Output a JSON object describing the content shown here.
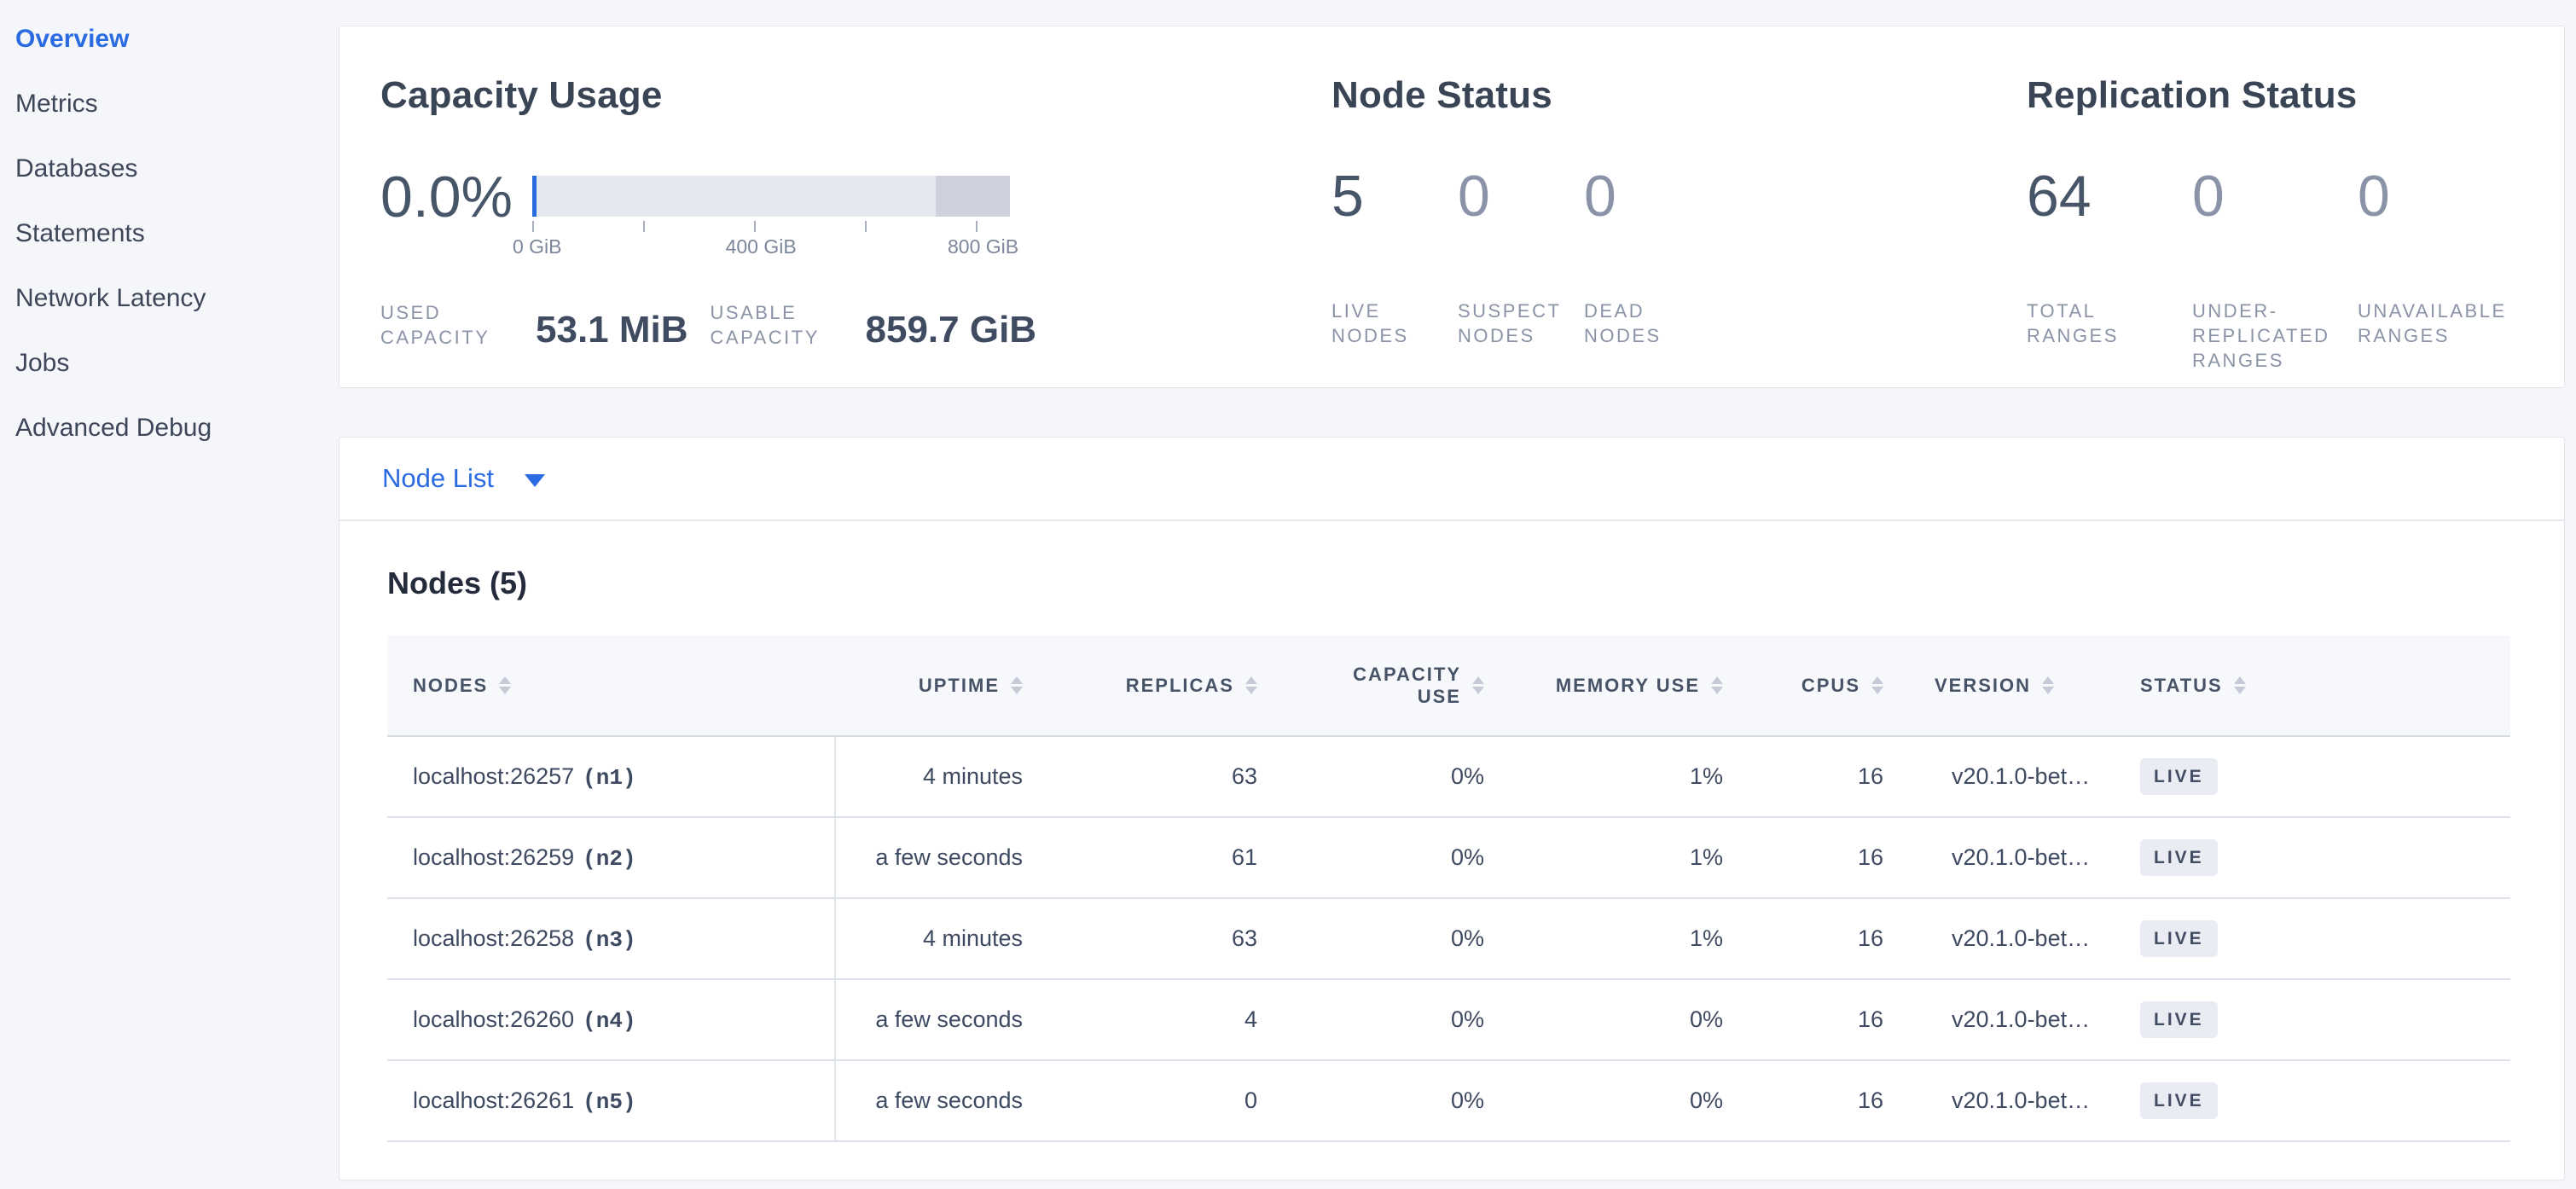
{
  "colors": {
    "accent_blue": "#2b6be2",
    "text_dark": "#394455",
    "text_row": "#3e4a61",
    "text_muted": "#8b93a7",
    "page_background": "#f5f6fa",
    "card_background": "#ffffff",
    "gauge_light": "#e5e8ee",
    "gauge_dark": "#cdd2dd",
    "badge_background": "#e9ecf3",
    "header_background": "#f7f8fb"
  },
  "sidebar": {
    "items": [
      {
        "label": "Overview",
        "active": true
      },
      {
        "label": "Metrics",
        "active": false
      },
      {
        "label": "Databases",
        "active": false
      },
      {
        "label": "Statements",
        "active": false
      },
      {
        "label": "Network Latency",
        "active": false
      },
      {
        "label": "Jobs",
        "active": false
      },
      {
        "label": "Advanced Debug",
        "active": false
      }
    ]
  },
  "summary": {
    "capacity": {
      "title": "Capacity Usage",
      "percent": "0.0%",
      "gauge": {
        "used_fraction_percent": 0.0,
        "light_segment_end_percent": 84.5,
        "dark_segment_end_percent": 100,
        "axis_ticks": [
          {
            "label": "0 GiB",
            "pos": 0
          },
          {
            "label": "",
            "pos": 23.2
          },
          {
            "label": "400 GiB",
            "pos": 46.4
          },
          {
            "label": "",
            "pos": 69.7
          },
          {
            "label": "800 GiB",
            "pos": 92.9
          }
        ]
      },
      "used_label": "USED CAPACITY",
      "used_value": "53.1 MiB",
      "usable_label": "USABLE CAPACITY",
      "usable_value": "859.7 GiB"
    },
    "node_status": {
      "title": "Node Status",
      "stats": [
        {
          "value": "5",
          "label": "LIVE NODES",
          "emphasis": true
        },
        {
          "value": "0",
          "label": "SUSPECT NODES",
          "emphasis": false
        },
        {
          "value": "0",
          "label": "DEAD NODES",
          "emphasis": false
        }
      ]
    },
    "replication": {
      "title": "Replication Status",
      "stats": [
        {
          "value": "64",
          "label": "TOTAL RANGES",
          "emphasis": true
        },
        {
          "value": "0",
          "label": "UNDER-REPLICATED RANGES",
          "emphasis": false
        },
        {
          "value": "0",
          "label": "UNAVAILABLE RANGES",
          "emphasis": false
        }
      ]
    }
  },
  "node_list": {
    "selector_label": "Node List",
    "section_title": "Nodes (5)",
    "columns": [
      {
        "label": "NODES"
      },
      {
        "label": "UPTIME"
      },
      {
        "label": "REPLICAS"
      },
      {
        "label": "CAPACITY USE"
      },
      {
        "label": "MEMORY USE"
      },
      {
        "label": "CPUS"
      },
      {
        "label": "VERSION"
      },
      {
        "label": "STATUS"
      }
    ],
    "rows": [
      {
        "address": "localhost:26257",
        "id": "(n1)",
        "uptime": "4 minutes",
        "replicas": "63",
        "capacity_use": "0%",
        "memory_use": "1%",
        "cpus": "16",
        "version": "v20.1.0-bet…",
        "status": "LIVE"
      },
      {
        "address": "localhost:26259",
        "id": "(n2)",
        "uptime": "a few seconds",
        "replicas": "61",
        "capacity_use": "0%",
        "memory_use": "1%",
        "cpus": "16",
        "version": "v20.1.0-bet…",
        "status": "LIVE"
      },
      {
        "address": "localhost:26258",
        "id": "(n3)",
        "uptime": "4 minutes",
        "replicas": "63",
        "capacity_use": "0%",
        "memory_use": "1%",
        "cpus": "16",
        "version": "v20.1.0-bet…",
        "status": "LIVE"
      },
      {
        "address": "localhost:26260",
        "id": "(n4)",
        "uptime": "a few seconds",
        "replicas": "4",
        "capacity_use": "0%",
        "memory_use": "0%",
        "cpus": "16",
        "version": "v20.1.0-bet…",
        "status": "LIVE"
      },
      {
        "address": "localhost:26261",
        "id": "(n5)",
        "uptime": "a few seconds",
        "replicas": "0",
        "capacity_use": "0%",
        "memory_use": "0%",
        "cpus": "16",
        "version": "v20.1.0-bet…",
        "status": "LIVE"
      }
    ]
  }
}
